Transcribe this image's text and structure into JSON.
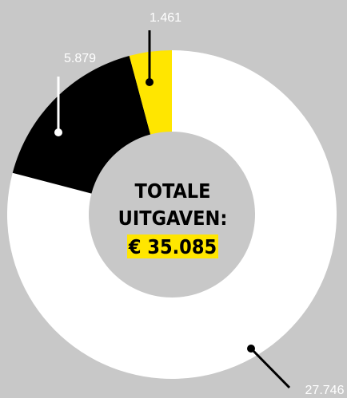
{
  "chart_data": {
    "type": "donut",
    "categories": [
      null,
      null,
      null
    ],
    "values": [
      27746,
      5879,
      1461
    ],
    "value_labels": [
      "27.746",
      "5.879",
      "1.461"
    ],
    "colors": [
      "#ffffff",
      "#000000",
      "#ffe600"
    ],
    "center_title": [
      "TOTALE",
      "UITGAVEN:"
    ],
    "center_total": "€ 35.085"
  }
}
